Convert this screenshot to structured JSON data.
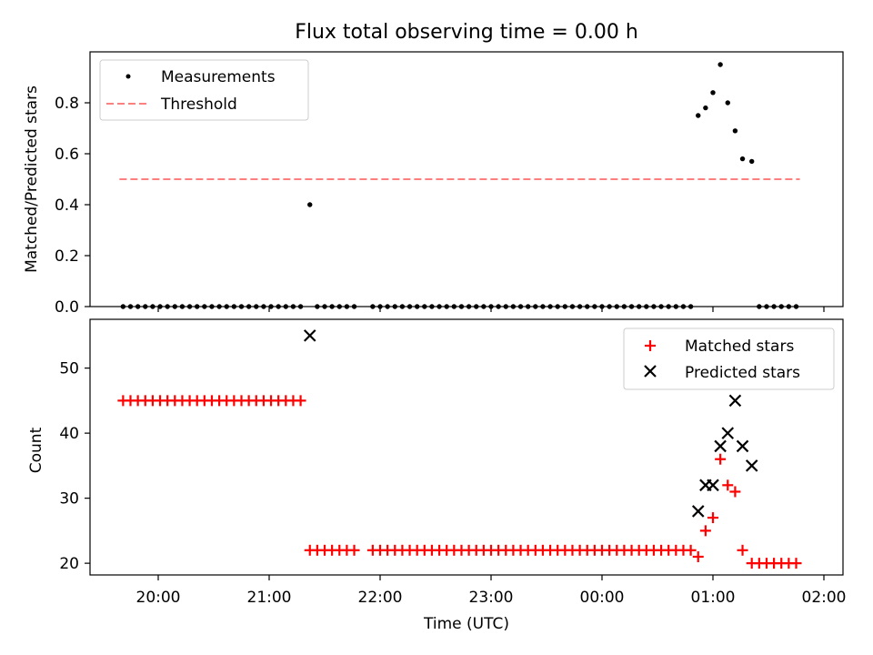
{
  "chart_data": [
    {
      "type": "scatter",
      "title": "Flux total observing time = 0.00 h",
      "ylabel": "Matched/Predicted stars",
      "xlabel": "",
      "ylim": [
        0,
        1.0
      ],
      "yticks": [
        0.0,
        0.2,
        0.4,
        0.6,
        0.8
      ],
      "ytick_labels": [
        "0.0",
        "0.2",
        "0.4",
        "0.6",
        "0.8"
      ],
      "legend_position": "top-left",
      "series": [
        {
          "name": "Measurements",
          "marker": "dot",
          "color": "#000000",
          "points": [
            [
              "19:41",
              0
            ],
            [
              "19:45",
              0
            ],
            [
              "19:49",
              0
            ],
            [
              "19:53",
              0
            ],
            [
              "19:57",
              0
            ],
            [
              "20:01",
              0
            ],
            [
              "20:05",
              0
            ],
            [
              "20:09",
              0
            ],
            [
              "20:13",
              0
            ],
            [
              "20:17",
              0
            ],
            [
              "20:21",
              0
            ],
            [
              "20:25",
              0
            ],
            [
              "20:29",
              0
            ],
            [
              "20:33",
              0
            ],
            [
              "20:37",
              0
            ],
            [
              "20:41",
              0
            ],
            [
              "20:45",
              0
            ],
            [
              "20:49",
              0
            ],
            [
              "20:53",
              0
            ],
            [
              "20:57",
              0
            ],
            [
              "21:01",
              0
            ],
            [
              "21:05",
              0
            ],
            [
              "21:09",
              0
            ],
            [
              "21:13",
              0
            ],
            [
              "21:17",
              0
            ],
            [
              "21:22",
              0.4
            ],
            [
              "21:26",
              0
            ],
            [
              "21:30",
              0
            ],
            [
              "21:34",
              0
            ],
            [
              "21:38",
              0
            ],
            [
              "21:42",
              0
            ],
            [
              "21:46",
              0
            ],
            [
              "21:56",
              0
            ],
            [
              "22:00",
              0
            ],
            [
              "22:04",
              0
            ],
            [
              "22:08",
              0
            ],
            [
              "22:12",
              0
            ],
            [
              "22:16",
              0
            ],
            [
              "22:20",
              0
            ],
            [
              "22:24",
              0
            ],
            [
              "22:28",
              0
            ],
            [
              "22:32",
              0
            ],
            [
              "22:36",
              0
            ],
            [
              "22:40",
              0
            ],
            [
              "22:44",
              0
            ],
            [
              "22:48",
              0
            ],
            [
              "22:52",
              0
            ],
            [
              "22:56",
              0
            ],
            [
              "23:00",
              0
            ],
            [
              "23:04",
              0
            ],
            [
              "23:08",
              0
            ],
            [
              "23:12",
              0
            ],
            [
              "23:16",
              0
            ],
            [
              "23:20",
              0
            ],
            [
              "23:24",
              0
            ],
            [
              "23:28",
              0
            ],
            [
              "23:32",
              0
            ],
            [
              "23:36",
              0
            ],
            [
              "23:40",
              0
            ],
            [
              "23:44",
              0
            ],
            [
              "23:48",
              0
            ],
            [
              "23:52",
              0
            ],
            [
              "23:56",
              0
            ],
            [
              "00:00",
              0
            ],
            [
              "00:04",
              0
            ],
            [
              "00:08",
              0
            ],
            [
              "00:12",
              0
            ],
            [
              "00:16",
              0
            ],
            [
              "00:20",
              0
            ],
            [
              "00:24",
              0
            ],
            [
              "00:28",
              0
            ],
            [
              "00:32",
              0
            ],
            [
              "00:36",
              0
            ],
            [
              "00:40",
              0
            ],
            [
              "00:44",
              0
            ],
            [
              "00:48",
              0
            ],
            [
              "00:52",
              0.75
            ],
            [
              "00:56",
              0.78
            ],
            [
              "01:00",
              0.84
            ],
            [
              "01:04",
              0.95
            ],
            [
              "01:08",
              0.8
            ],
            [
              "01:12",
              0.69
            ],
            [
              "01:16",
              0.58
            ],
            [
              "01:21",
              0.57
            ],
            [
              "01:25",
              0
            ],
            [
              "01:29",
              0
            ],
            [
              "01:33",
              0
            ],
            [
              "01:37",
              0
            ],
            [
              "01:41",
              0
            ],
            [
              "01:45",
              0
            ]
          ]
        },
        {
          "name": "Threshold",
          "marker": "dashed-line",
          "color": "#ff7f7f",
          "points": [
            [
              "19:41",
              0.5
            ],
            [
              "01:45",
              0.5
            ]
          ]
        }
      ]
    },
    {
      "type": "scatter",
      "title": "",
      "ylabel": "Count",
      "xlabel": "Time (UTC)",
      "ylim": [
        18.2,
        57.5
      ],
      "yticks": [
        20,
        30,
        40,
        50
      ],
      "ytick_labels": [
        "20",
        "30",
        "40",
        "50"
      ],
      "xticks": [
        "20:00",
        "21:00",
        "22:00",
        "23:00",
        "00:00",
        "01:00",
        "02:00"
      ],
      "legend_position": "top-right",
      "series": [
        {
          "name": "Matched stars",
          "marker": "plus",
          "color": "#ff0000",
          "points": [
            [
              "19:41",
              45
            ],
            [
              "19:45",
              45
            ],
            [
              "19:49",
              45
            ],
            [
              "19:53",
              45
            ],
            [
              "19:57",
              45
            ],
            [
              "20:01",
              45
            ],
            [
              "20:05",
              45
            ],
            [
              "20:09",
              45
            ],
            [
              "20:13",
              45
            ],
            [
              "20:17",
              45
            ],
            [
              "20:21",
              45
            ],
            [
              "20:25",
              45
            ],
            [
              "20:29",
              45
            ],
            [
              "20:33",
              45
            ],
            [
              "20:37",
              45
            ],
            [
              "20:41",
              45
            ],
            [
              "20:45",
              45
            ],
            [
              "20:49",
              45
            ],
            [
              "20:53",
              45
            ],
            [
              "20:57",
              45
            ],
            [
              "21:01",
              45
            ],
            [
              "21:05",
              45
            ],
            [
              "21:09",
              45
            ],
            [
              "21:13",
              45
            ],
            [
              "21:17",
              45
            ],
            [
              "21:22",
              22
            ],
            [
              "21:26",
              22
            ],
            [
              "21:30",
              22
            ],
            [
              "21:34",
              22
            ],
            [
              "21:38",
              22
            ],
            [
              "21:42",
              22
            ],
            [
              "21:46",
              22
            ],
            [
              "21:56",
              22
            ],
            [
              "22:00",
              22
            ],
            [
              "22:04",
              22
            ],
            [
              "22:08",
              22
            ],
            [
              "22:12",
              22
            ],
            [
              "22:16",
              22
            ],
            [
              "22:20",
              22
            ],
            [
              "22:24",
              22
            ],
            [
              "22:28",
              22
            ],
            [
              "22:32",
              22
            ],
            [
              "22:36",
              22
            ],
            [
              "22:40",
              22
            ],
            [
              "22:44",
              22
            ],
            [
              "22:48",
              22
            ],
            [
              "22:52",
              22
            ],
            [
              "22:56",
              22
            ],
            [
              "23:00",
              22
            ],
            [
              "23:04",
              22
            ],
            [
              "23:08",
              22
            ],
            [
              "23:12",
              22
            ],
            [
              "23:16",
              22
            ],
            [
              "23:20",
              22
            ],
            [
              "23:24",
              22
            ],
            [
              "23:28",
              22
            ],
            [
              "23:32",
              22
            ],
            [
              "23:36",
              22
            ],
            [
              "23:40",
              22
            ],
            [
              "23:44",
              22
            ],
            [
              "23:48",
              22
            ],
            [
              "23:52",
              22
            ],
            [
              "23:56",
              22
            ],
            [
              "00:00",
              22
            ],
            [
              "00:04",
              22
            ],
            [
              "00:08",
              22
            ],
            [
              "00:12",
              22
            ],
            [
              "00:16",
              22
            ],
            [
              "00:20",
              22
            ],
            [
              "00:24",
              22
            ],
            [
              "00:28",
              22
            ],
            [
              "00:32",
              22
            ],
            [
              "00:36",
              22
            ],
            [
              "00:40",
              22
            ],
            [
              "00:44",
              22
            ],
            [
              "00:48",
              22
            ],
            [
              "00:52",
              21
            ],
            [
              "00:56",
              25
            ],
            [
              "01:00",
              27
            ],
            [
              "01:04",
              36
            ],
            [
              "01:08",
              32
            ],
            [
              "01:12",
              31
            ],
            [
              "01:16",
              22
            ],
            [
              "01:21",
              20
            ],
            [
              "01:25",
              20
            ],
            [
              "01:29",
              20
            ],
            [
              "01:33",
              20
            ],
            [
              "01:37",
              20
            ],
            [
              "01:41",
              20
            ],
            [
              "01:45",
              20
            ]
          ]
        },
        {
          "name": "Predicted stars",
          "marker": "x",
          "color": "#000000",
          "points": [
            [
              "21:22",
              55
            ],
            [
              "00:52",
              28
            ],
            [
              "00:56",
              32
            ],
            [
              "01:00",
              32
            ],
            [
              "01:04",
              38
            ],
            [
              "01:08",
              40
            ],
            [
              "01:12",
              45
            ],
            [
              "01:16",
              38
            ],
            [
              "01:21",
              35
            ]
          ]
        }
      ]
    }
  ]
}
